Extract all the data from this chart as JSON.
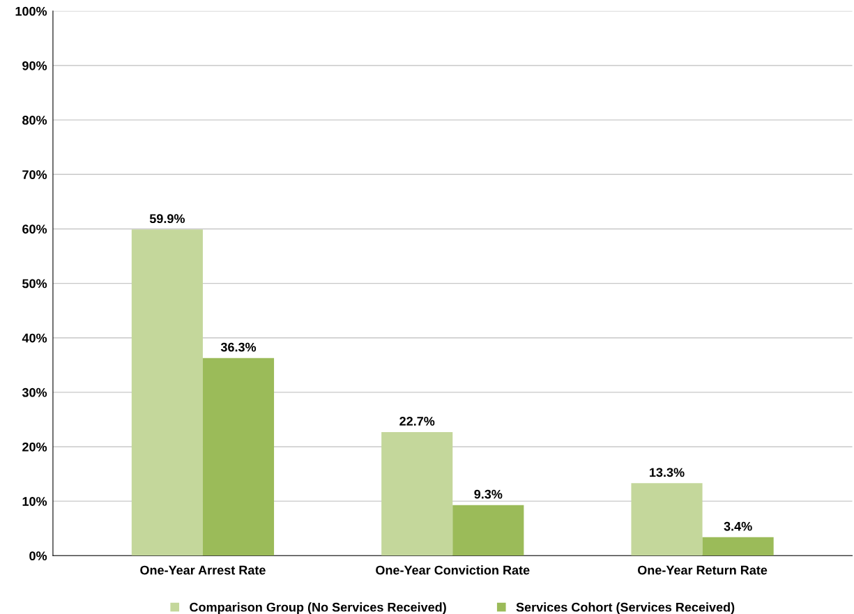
{
  "chart_data": {
    "type": "bar",
    "categories": [
      "One-Year Arrest Rate",
      "One-Year Conviction Rate",
      "One-Year Return Rate"
    ],
    "series": [
      {
        "name": "Comparison Group (No Services Received)",
        "color": "#c4d79b",
        "values": [
          59.9,
          22.7,
          13.3
        ],
        "value_labels": [
          "59.9%",
          "22.7%",
          "13.3%"
        ]
      },
      {
        "name": "Services Cohort (Services Received)",
        "color": "#9bbb59",
        "values": [
          36.3,
          9.3,
          3.4
        ],
        "value_labels": [
          "36.3%",
          "9.3%",
          "3.4%"
        ]
      }
    ],
    "ylim": [
      0,
      100
    ],
    "yticks": [
      {
        "value": 0,
        "label": "0%"
      },
      {
        "value": 10,
        "label": "10%"
      },
      {
        "value": 20,
        "label": "20%"
      },
      {
        "value": 30,
        "label": "30%"
      },
      {
        "value": 40,
        "label": "40%"
      },
      {
        "value": 50,
        "label": "50%"
      },
      {
        "value": 60,
        "label": "60%"
      },
      {
        "value": 70,
        "label": "70%"
      },
      {
        "value": 80,
        "label": "80%"
      },
      {
        "value": 90,
        "label": "90%"
      },
      {
        "value": 100,
        "label": "100%"
      }
    ],
    "grid": "y",
    "legend": "bottom"
  }
}
